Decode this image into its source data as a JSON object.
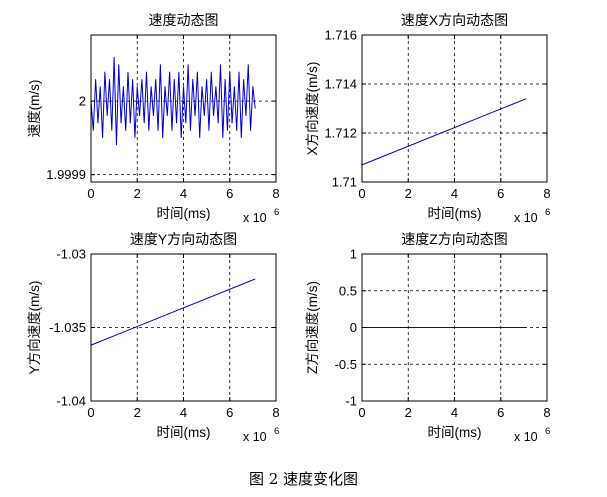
{
  "figure_caption": "图 2 速度变化图",
  "chart_data": [
    {
      "type": "line",
      "title": "速度动态图",
      "xlabel": "时间(ms)",
      "ylabel": "速度(m/s)",
      "x_multiplier_label": [
        "x 10",
        "6"
      ],
      "xlim": [
        0,
        8
      ],
      "ylim": [
        1.99989,
        2.00009
      ],
      "xticks": [
        0,
        2,
        4,
        6,
        8
      ],
      "xtick_labels": [
        "0",
        "2",
        "4",
        "6",
        "8"
      ],
      "yticks": [
        1.9999,
        2.0
      ],
      "ytick_labels": [
        "1.9999",
        "2"
      ],
      "grid": true,
      "series": [
        {
          "color": "#0000c8",
          "x": [
            0.0,
            0.1,
            0.2,
            0.3,
            0.4,
            0.5,
            0.6,
            0.7,
            0.8,
            0.9,
            1.0,
            1.1,
            1.2,
            1.3,
            1.4,
            1.5,
            1.6,
            1.7,
            1.8,
            1.9,
            2.0,
            2.1,
            2.2,
            2.3,
            2.4,
            2.5,
            2.6,
            2.7,
            2.8,
            2.9,
            3.0,
            3.1,
            3.2,
            3.3,
            3.4,
            3.5,
            3.6,
            3.7,
            3.8,
            3.9,
            4.0,
            4.1,
            4.2,
            4.3,
            4.4,
            4.5,
            4.6,
            4.7,
            4.8,
            4.9,
            5.0,
            5.1,
            5.2,
            5.3,
            5.4,
            5.5,
            5.6,
            5.7,
            5.8,
            5.9,
            6.0,
            6.1,
            6.2,
            6.3,
            6.4,
            6.5,
            6.6,
            6.7,
            6.8,
            6.9,
            7.0,
            7.1
          ],
          "y": [
            2.0,
            1.99996,
            2.00003,
            1.99997,
            2.00002,
            1.99995,
            2.00004,
            1.99998,
            2.00003,
            1.99996,
            2.00006,
            1.99994,
            2.00005,
            1.99997,
            2.00002,
            1.99996,
            2.00004,
            1.99997,
            2.00003,
            1.99995,
            2.00002,
            1.99998,
            2.00003,
            1.99997,
            2.00004,
            1.99996,
            2.00002,
            1.99998,
            2.00003,
            1.99996,
            2.00005,
            1.99995,
            2.00002,
            1.99998,
            2.00004,
            1.99996,
            2.00003,
            1.99997,
            2.00004,
            1.99995,
            2.00002,
            1.99997,
            2.00005,
            1.99996,
            2.00003,
            1.99998,
            2.00004,
            1.99995,
            2.00002,
            1.99998,
            2.00003,
            1.99996,
            2.00004,
            1.99998,
            2.00002,
            1.99997,
            2.00005,
            1.99995,
            2.00003,
            1.99996,
            2.00004,
            1.99997,
            2.00002,
            1.99996,
            2.00004,
            1.99995,
            2.00003,
            1.99998,
            2.00005,
            1.99996,
            2.00002,
            1.99999
          ]
        }
      ]
    },
    {
      "type": "line",
      "title": "速度X方向动态图",
      "xlabel": "时间(ms)",
      "ylabel": "X方向速度(m/s)",
      "x_multiplier_label": [
        "x 10",
        "6"
      ],
      "xlim": [
        0,
        8
      ],
      "ylim": [
        1.71,
        1.716
      ],
      "xticks": [
        0,
        2,
        4,
        6,
        8
      ],
      "xtick_labels": [
        "0",
        "2",
        "4",
        "6",
        "8"
      ],
      "yticks": [
        1.71,
        1.712,
        1.714,
        1.716
      ],
      "ytick_labels": [
        "1.71",
        "1.712",
        "1.714",
        "1.716"
      ],
      "grid": true,
      "series": [
        {
          "color": "#0000c8",
          "x": [
            0.0,
            7.1
          ],
          "y": [
            1.7107,
            1.7134
          ]
        }
      ]
    },
    {
      "type": "line",
      "title": "速度Y方向动态图",
      "xlabel": "时间(ms)",
      "ylabel": "Y方向速度(m/s)",
      "x_multiplier_label": [
        "x 10",
        "6"
      ],
      "xlim": [
        0,
        8
      ],
      "ylim": [
        -1.04,
        -1.03
      ],
      "xticks": [
        0,
        2,
        4,
        6,
        8
      ],
      "xtick_labels": [
        "0",
        "2",
        "4",
        "6",
        "8"
      ],
      "yticks": [
        -1.04,
        -1.035,
        -1.03
      ],
      "ytick_labels": [
        "-1.04",
        "-1.035",
        "-1.03"
      ],
      "grid": true,
      "series": [
        {
          "color": "#0000c8",
          "x": [
            0.0,
            7.1
          ],
          "y": [
            -1.0362,
            -1.0317
          ]
        }
      ]
    },
    {
      "type": "line",
      "title": "速度Z方向动态图",
      "xlabel": "时间(ms)",
      "ylabel": "Z方向速度(m/s)",
      "x_multiplier_label": [
        "x 10",
        "6"
      ],
      "xlim": [
        0,
        8
      ],
      "ylim": [
        -1,
        1
      ],
      "xticks": [
        0,
        2,
        4,
        6,
        8
      ],
      "xtick_labels": [
        "0",
        "2",
        "4",
        "6",
        "8"
      ],
      "yticks": [
        -1,
        -0.5,
        0,
        0.5,
        1
      ],
      "ytick_labels": [
        "-1",
        "-0.5",
        "0",
        "0.5",
        "1"
      ],
      "grid": true,
      "series": [
        {
          "color": "#0000c8",
          "x": [
            0.0,
            7.1
          ],
          "y": [
            0,
            0
          ]
        }
      ]
    }
  ]
}
